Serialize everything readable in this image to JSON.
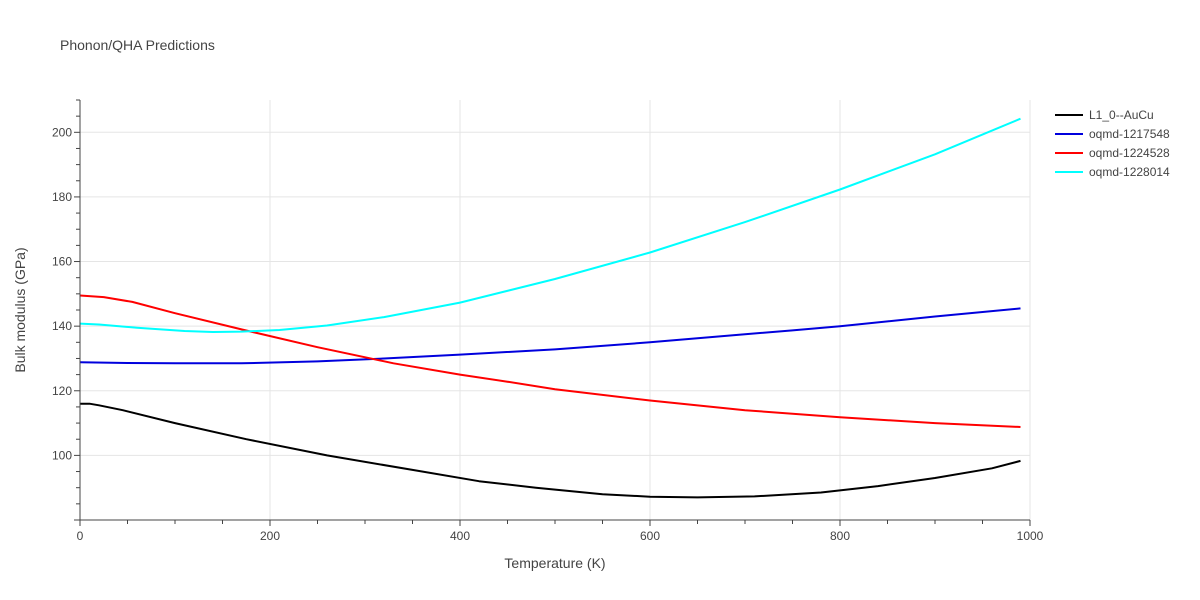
{
  "chart_data": {
    "type": "line",
    "title": "Phonon/QHA Predictions",
    "xlabel": "Temperature (K)",
    "ylabel": "Bulk modulus (GPa)",
    "xlim": [
      0,
      1000
    ],
    "ylim": [
      80,
      210
    ],
    "xticks": [
      0,
      200,
      400,
      600,
      800,
      1000
    ],
    "yticks": [
      100,
      120,
      140,
      160,
      180,
      200
    ],
    "grid": true,
    "legend_position": "right",
    "series": [
      {
        "name": "L1_0--AuCu",
        "color": "#000000",
        "x": [
          0,
          10,
          20,
          45,
          100,
          175,
          260,
          350,
          420,
          480,
          550,
          600,
          650,
          710,
          780,
          840,
          900,
          960,
          990
        ],
        "y": [
          116,
          116,
          115.5,
          114,
          110,
          105,
          100,
          95.5,
          92,
          90,
          88,
          87.2,
          87,
          87.3,
          88.5,
          90.5,
          93,
          96,
          98.3
        ]
      },
      {
        "name": "oqmd-1217548",
        "color": "#0000dd",
        "x": [
          0,
          50,
          100,
          170,
          250,
          320,
          400,
          500,
          600,
          700,
          750,
          800,
          900,
          990
        ],
        "y": [
          128.8,
          128.6,
          128.5,
          128.5,
          129.1,
          130,
          131.2,
          132.8,
          135,
          137.5,
          138.7,
          140,
          143,
          145.5
        ]
      },
      {
        "name": "oqmd-1224528",
        "color": "#ff0000",
        "x": [
          0,
          25,
          55,
          100,
          170,
          250,
          330,
          400,
          450,
          500,
          600,
          700,
          800,
          900,
          990
        ],
        "y": [
          149.5,
          149,
          147.5,
          144,
          139,
          133.5,
          128.5,
          125,
          122.8,
          120.5,
          117,
          114,
          111.8,
          110,
          108.8
        ]
      },
      {
        "name": "oqmd-1228014",
        "color": "#00ffff",
        "x": [
          0,
          20,
          60,
          110,
          140,
          170,
          210,
          260,
          320,
          400,
          500,
          600,
          700,
          800,
          900,
          990
        ],
        "y": [
          140.8,
          140.5,
          139.5,
          138.5,
          138.2,
          138.3,
          138.8,
          140.2,
          142.8,
          147.3,
          154.6,
          162.8,
          172.2,
          182.3,
          193.2,
          204.2
        ]
      }
    ]
  }
}
